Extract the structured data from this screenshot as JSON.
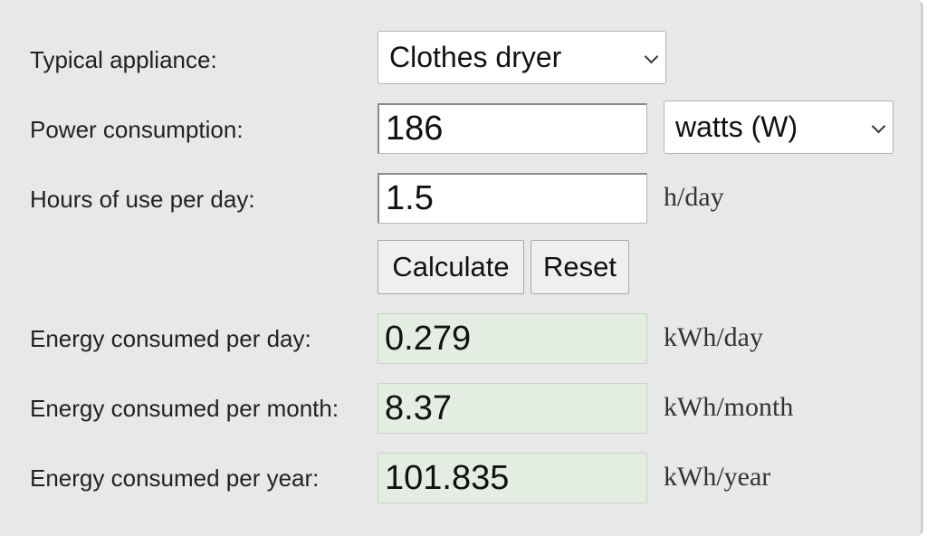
{
  "form": {
    "appliance": {
      "label": "Typical appliance:",
      "selected": "Clothes dryer"
    },
    "power": {
      "label": "Power consumption:",
      "value": "186",
      "unit_selected": "watts (W)"
    },
    "hours": {
      "label": "Hours of use per day:",
      "value": "1.5",
      "unit": "h/day"
    },
    "buttons": {
      "calculate": "Calculate",
      "reset": "Reset"
    },
    "energy_day": {
      "label": "Energy consumed per day:",
      "value": "0.279",
      "unit": "kWh/day"
    },
    "energy_month": {
      "label": "Energy consumed per month:",
      "value": "8.37",
      "unit": "kWh/month"
    },
    "energy_year": {
      "label": "Energy consumed per year:",
      "value": "101.835",
      "unit": "kWh/year"
    }
  }
}
